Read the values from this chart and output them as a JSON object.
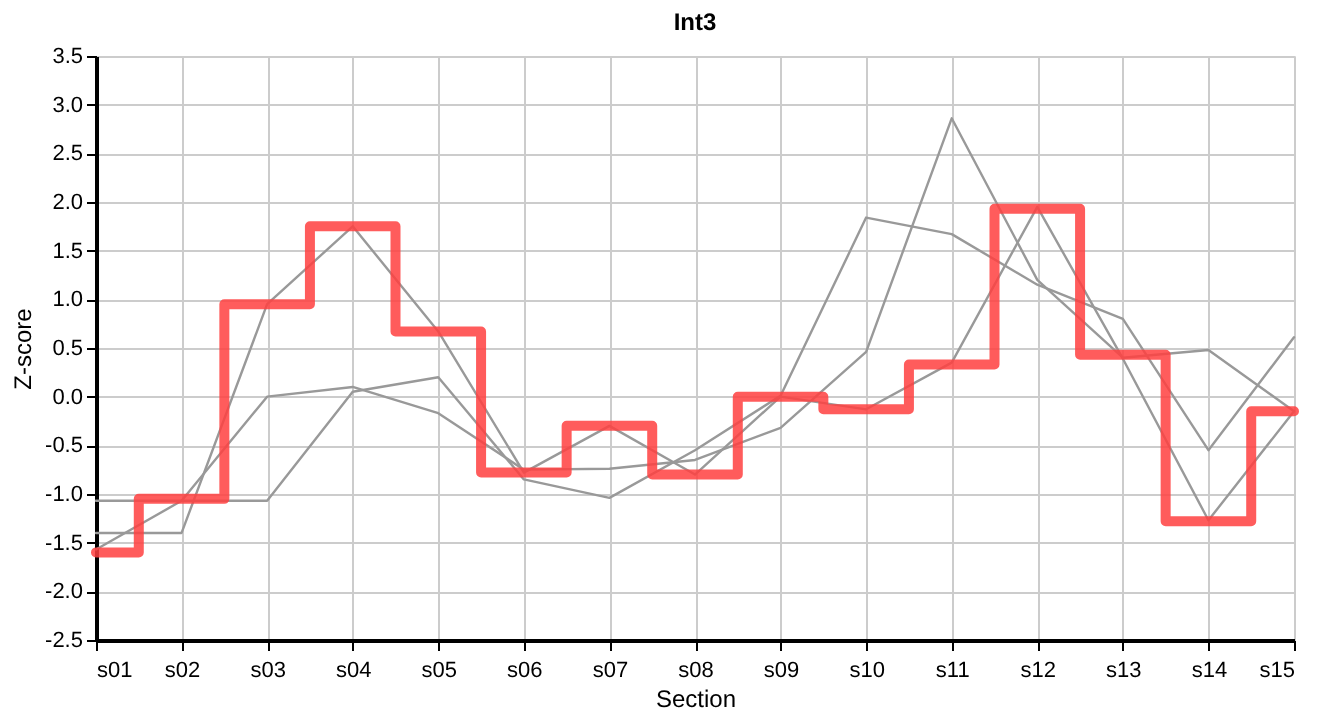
{
  "chart_data": {
    "type": "line",
    "title": "Int3",
    "xlabel": "Section",
    "ylabel": "Z-score",
    "categories": [
      "s01",
      "s02",
      "s03",
      "s04",
      "s05",
      "s06",
      "s07",
      "s08",
      "s09",
      "s10",
      "s11",
      "s12",
      "s13",
      "s14",
      "s15"
    ],
    "series": [
      {
        "color": "#999999",
        "values": [
          -1.4,
          -1.4,
          0.95,
          1.75,
          0.67,
          -0.78,
          -0.3,
          -0.8,
          0.0,
          -0.13,
          0.35,
          1.95,
          0.39,
          -1.27,
          -0.15
        ]
      },
      {
        "color": "#999999",
        "values": [
          -1.07,
          -1.07,
          -1.07,
          0.05,
          0.2,
          -0.85,
          -1.04,
          -0.55,
          0.01,
          1.84,
          1.67,
          1.15,
          0.8,
          -0.55,
          0.61
        ]
      },
      {
        "color": "#999999",
        "values": [
          -1.57,
          -1.07,
          0.0,
          0.1,
          -0.17,
          -0.75,
          -0.74,
          -0.65,
          -0.32,
          0.46,
          2.86,
          1.2,
          0.4,
          0.48,
          -0.15
        ]
      },
      {
        "type": "step",
        "color": "#ff4040",
        "values": [
          -1.6,
          -1.05,
          0.95,
          1.75,
          0.67,
          -0.78,
          -0.3,
          -0.8,
          0.0,
          -0.13,
          0.33,
          1.93,
          0.43,
          -1.28,
          -0.15
        ]
      }
    ],
    "ylim": [
      -2.5,
      3.5
    ],
    "yticks": [
      {
        "value": -2.5,
        "label": "-2.5"
      },
      {
        "value": -2,
        "label": "-2.0"
      },
      {
        "value": -1.5,
        "label": "-1.5"
      },
      {
        "value": -1,
        "label": "-1.0"
      },
      {
        "value": -0.5,
        "label": "-0.5"
      },
      {
        "value": 0,
        "label": "0.0"
      },
      {
        "value": 0.5,
        "label": "0.5"
      },
      {
        "value": 1,
        "label": "1.0"
      },
      {
        "value": 1.5,
        "label": "1.5"
      },
      {
        "value": 2,
        "label": "2.0"
      },
      {
        "value": 2.5,
        "label": "2.5"
      },
      {
        "value": 3,
        "label": "3.0"
      },
      {
        "value": 3.5,
        "label": "3.5"
      }
    ],
    "grid": true,
    "marker": "none",
    "line_style": "solid"
  }
}
